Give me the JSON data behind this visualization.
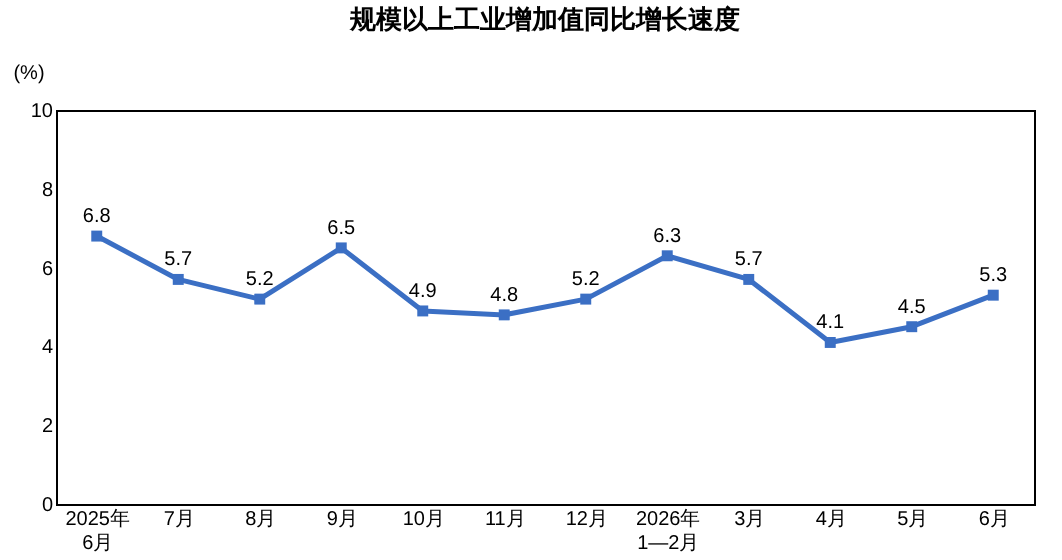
{
  "chart_data": {
    "type": "line",
    "title": "规模以上工业增加值同比增长速度",
    "ylabel": "(%)",
    "categories": [
      "2025年\n6月",
      "7月",
      "8月",
      "9月",
      "10月",
      "11月",
      "12月",
      "2026年\n1—2月",
      "3月",
      "4月",
      "5月",
      "6月"
    ],
    "series": [
      {
        "color": "#3b6fc4",
        "values": [
          6.8,
          5.7,
          5.2,
          6.5,
          4.9,
          4.8,
          5.2,
          6.3,
          5.7,
          4.1,
          4.5,
          5.3
        ]
      }
    ],
    "ylim": [
      0,
      10
    ],
    "yticks": [
      0,
      2,
      4,
      6,
      8,
      10
    ],
    "grid": false,
    "marker": "square",
    "line_style": "solid",
    "data_labels": true
  }
}
